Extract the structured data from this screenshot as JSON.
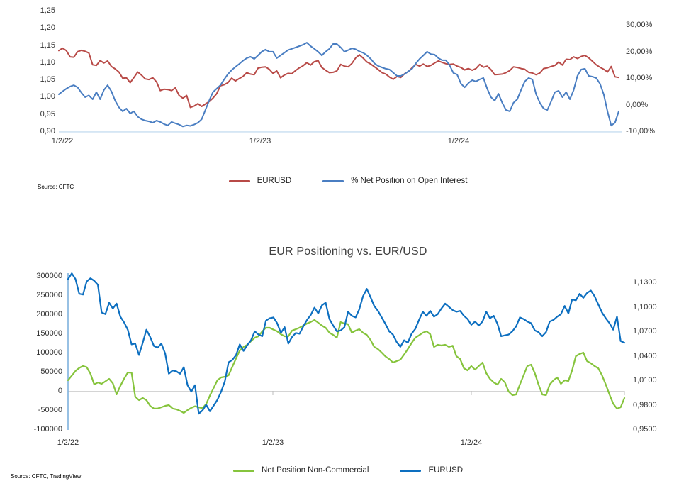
{
  "chart_data": [
    {
      "type": "line",
      "title": "",
      "source": "Source: CFTC",
      "legend_position": "bottom",
      "grid": "off",
      "x_tick_labels": [
        "1/2/22",
        "1/2/23",
        "1/2/24"
      ],
      "y_left": {
        "label": "",
        "lim": [
          0.9,
          1.25
        ],
        "tick_labels": [
          "1,25",
          "1,20",
          "1,15",
          "1,10",
          "1,05",
          "1,00",
          "0,95",
          "0,90"
        ],
        "tick_values": [
          1.25,
          1.2,
          1.15,
          1.1,
          1.05,
          1.0,
          0.95,
          0.9
        ]
      },
      "y_right": {
        "label": "",
        "lim": [
          -10,
          30
        ],
        "tick_labels": [
          "30,00%",
          "20,00%",
          "10,00%",
          "0,00%",
          "-10,00%"
        ],
        "tick_values": [
          30,
          20,
          10,
          0,
          -10
        ]
      },
      "series": [
        {
          "name": "EURUSD",
          "axis": "left",
          "color": "#b84a47",
          "values": [
            1.134,
            1.141,
            1.134,
            1.116,
            1.115,
            1.131,
            1.135,
            1.132,
            1.127,
            1.093,
            1.091,
            1.105,
            1.098,
            1.104,
            1.088,
            1.081,
            1.072,
            1.054,
            1.055,
            1.041,
            1.056,
            1.072,
            1.063,
            1.052,
            1.05,
            1.055,
            1.043,
            1.018,
            1.022,
            1.021,
            1.018,
            1.026,
            1.004,
            0.996,
            1.004,
            0.969,
            0.973,
            0.98,
            0.972,
            0.979,
            0.986,
            0.996,
            1.009,
            1.032,
            1.035,
            1.041,
            1.054,
            1.046,
            1.053,
            1.059,
            1.07,
            1.066,
            1.064,
            1.083,
            1.086,
            1.087,
            1.08,
            1.068,
            1.075,
            1.055,
            1.063,
            1.068,
            1.067,
            1.076,
            1.084,
            1.09,
            1.099,
            1.092,
            1.102,
            1.105,
            1.085,
            1.077,
            1.07,
            1.071,
            1.075,
            1.094,
            1.089,
            1.087,
            1.097,
            1.113,
            1.122,
            1.112,
            1.101,
            1.095,
            1.087,
            1.079,
            1.07,
            1.066,
            1.057,
            1.051,
            1.059,
            1.056,
            1.067,
            1.073,
            1.084,
            1.094,
            1.089,
            1.095,
            1.088,
            1.091,
            1.098,
            1.104,
            1.1,
            1.096,
            1.094,
            1.095,
            1.089,
            1.085,
            1.078,
            1.082,
            1.077,
            1.082,
            1.094,
            1.086,
            1.089,
            1.079,
            1.064,
            1.065,
            1.066,
            1.07,
            1.076,
            1.087,
            1.085,
            1.082,
            1.08,
            1.071,
            1.069,
            1.064,
            1.069,
            1.082,
            1.084,
            1.088,
            1.091,
            1.101,
            1.092,
            1.109,
            1.108,
            1.116,
            1.111,
            1.117,
            1.12,
            1.113,
            1.103,
            1.093,
            1.086,
            1.08,
            1.072,
            1.088,
            1.058,
            1.056
          ]
        },
        {
          "name": "% Net Position on Open Interest",
          "axis": "right",
          "color": "#4a7ec2",
          "values": [
            3.9,
            5.0,
            6.0,
            6.8,
            7.3,
            6.5,
            4.5,
            2.8,
            3.5,
            2.0,
            4.7,
            2.0,
            5.5,
            7.3,
            5.0,
            1.5,
            -1.0,
            -2.5,
            -1.5,
            -3.3,
            -2.5,
            -4.5,
            -5.5,
            -6.0,
            -6.3,
            -6.8,
            -6.0,
            -6.5,
            -7.3,
            -7.8,
            -6.5,
            -7.0,
            -7.5,
            -8.2,
            -7.8,
            -8.0,
            -7.5,
            -6.8,
            -5.5,
            -2.0,
            1.5,
            4.7,
            6.0,
            7.3,
            9.5,
            11.5,
            13.0,
            14.2,
            15.3,
            16.5,
            17.5,
            18.0,
            17.2,
            18.5,
            19.9,
            20.7,
            19.9,
            19.9,
            17.5,
            18.5,
            19.5,
            20.5,
            21.0,
            21.5,
            22.0,
            22.5,
            23.3,
            22.0,
            21.0,
            19.9,
            18.5,
            19.9,
            21.0,
            22.8,
            22.8,
            21.5,
            19.9,
            20.5,
            21.2,
            20.8,
            20.0,
            19.5,
            18.5,
            17.2,
            15.5,
            14.5,
            14.0,
            13.5,
            13.2,
            12.0,
            10.8,
            10.8,
            11.5,
            12.5,
            13.5,
            15.5,
            17.2,
            18.5,
            19.9,
            19.0,
            18.8,
            17.5,
            16.7,
            16.7,
            14.8,
            11.9,
            11.3,
            7.9,
            6.5,
            8.1,
            9.2,
            8.7,
            9.5,
            10.0,
            6.0,
            2.8,
            1.5,
            4.1,
            0.7,
            -2.0,
            -2.5,
            0.7,
            2.0,
            5.5,
            8.7,
            10.0,
            9.5,
            3.9,
            0.7,
            -1.5,
            -2.0,
            1.2,
            4.7,
            5.2,
            2.8,
            4.7,
            2.0,
            5.5,
            10.8,
            13.2,
            13.5,
            10.8,
            10.5,
            10.0,
            7.9,
            3.9,
            -2.5,
            -7.9,
            -6.8,
            -2.5
          ]
        }
      ]
    },
    {
      "type": "line",
      "title": "EUR Positioning vs. EUR/USD",
      "source": "Source: CFTC, TradingView",
      "legend_position": "bottom",
      "grid": "zero-line-only",
      "x_tick_labels": [
        "1/2/22",
        "1/2/23",
        "1/2/24"
      ],
      "y_left": {
        "label": "",
        "lim": [
          -100000,
          300000
        ],
        "tick_labels": [
          "300000",
          "250000",
          "200000",
          "150000",
          "100000",
          "50000",
          "0",
          "-50000",
          "-100000"
        ],
        "tick_values": [
          300000,
          250000,
          200000,
          150000,
          100000,
          50000,
          0,
          -50000,
          -100000
        ]
      },
      "y_right": {
        "label": "",
        "lim": [
          0.95,
          1.13
        ],
        "tick_labels": [
          "1,1300",
          "1,1000",
          "1,0700",
          "1,0400",
          "1,0100",
          "0,9800",
          "0,9500"
        ],
        "tick_values": [
          1.13,
          1.1,
          1.07,
          1.04,
          1.01,
          0.98,
          0.95
        ]
      },
      "series": [
        {
          "name": "Net Position Non-Commercial",
          "axis": "left",
          "color": "#86c43d",
          "values": [
            28000,
            40000,
            52000,
            60000,
            65000,
            62000,
            45000,
            17000,
            22000,
            18500,
            25000,
            31500,
            20000,
            -9000,
            13000,
            31500,
            48000,
            48000,
            -15000,
            -24000,
            -18500,
            -24000,
            -39000,
            -46000,
            -46000,
            -42500,
            -39000,
            -37000,
            -46000,
            -48000,
            -52000,
            -57500,
            -50000,
            -44000,
            -40000,
            -43000,
            -45000,
            -34000,
            -12000,
            8000,
            27800,
            35200,
            37000,
            40700,
            63000,
            85000,
            105600,
            114800,
            120400,
            130000,
            138900,
            142600,
            155600,
            164800,
            164800,
            160000,
            155600,
            148000,
            142600,
            142600,
            157400,
            161100,
            165000,
            170400,
            175900,
            180000,
            185200,
            178000,
            170400,
            164800,
            151900,
            146300,
            138900,
            179600,
            175900,
            174100,
            151900,
            157400,
            161100,
            151900,
            146300,
            133300,
            114800,
            109300,
            100000,
            90000,
            83300,
            74100,
            77800,
            81500,
            95000,
            109300,
            125000,
            138900,
            145000,
            151900,
            155600,
            148000,
            114800,
            120400,
            118500,
            120400,
            115000,
            118000,
            90700,
            83300,
            59300,
            53700,
            64800,
            55600,
            64800,
            74100,
            46300,
            31500,
            22200,
            16700,
            31500,
            22200,
            -1850,
            -11100,
            -9260,
            16700,
            40700,
            64800,
            68500,
            46300,
            16700,
            -9260,
            -11100,
            16700,
            27800,
            35200,
            18500,
            27800,
            25900,
            53700,
            90700,
            96300,
            100000,
            77800,
            72200,
            64800,
            59300,
            40700,
            16700,
            -9260,
            -33300,
            -46300,
            -42600,
            -18500
          ]
        },
        {
          "name": "EURUSD",
          "axis": "right",
          "color": "#0d6fc0",
          "values": [
            1.134,
            1.141,
            1.134,
            1.116,
            1.115,
            1.131,
            1.135,
            1.132,
            1.127,
            1.093,
            1.091,
            1.105,
            1.098,
            1.104,
            1.088,
            1.081,
            1.072,
            1.054,
            1.055,
            1.041,
            1.056,
            1.072,
            1.063,
            1.052,
            1.05,
            1.055,
            1.043,
            1.018,
            1.022,
            1.021,
            1.018,
            1.026,
            1.004,
            0.996,
            1.004,
            0.969,
            0.973,
            0.98,
            0.972,
            0.979,
            0.986,
            0.996,
            1.009,
            1.032,
            1.035,
            1.041,
            1.054,
            1.046,
            1.053,
            1.059,
            1.07,
            1.066,
            1.064,
            1.083,
            1.086,
            1.087,
            1.08,
            1.068,
            1.075,
            1.055,
            1.063,
            1.068,
            1.067,
            1.076,
            1.084,
            1.09,
            1.099,
            1.092,
            1.102,
            1.105,
            1.085,
            1.077,
            1.07,
            1.071,
            1.075,
            1.094,
            1.089,
            1.087,
            1.097,
            1.113,
            1.122,
            1.112,
            1.101,
            1.095,
            1.087,
            1.079,
            1.07,
            1.066,
            1.057,
            1.051,
            1.059,
            1.056,
            1.067,
            1.073,
            1.084,
            1.094,
            1.089,
            1.095,
            1.088,
            1.091,
            1.098,
            1.104,
            1.1,
            1.096,
            1.094,
            1.095,
            1.089,
            1.085,
            1.078,
            1.082,
            1.077,
            1.082,
            1.094,
            1.086,
            1.089,
            1.079,
            1.064,
            1.065,
            1.066,
            1.07,
            1.076,
            1.087,
            1.085,
            1.082,
            1.08,
            1.071,
            1.069,
            1.064,
            1.069,
            1.082,
            1.084,
            1.088,
            1.091,
            1.101,
            1.092,
            1.109,
            1.108,
            1.116,
            1.111,
            1.117,
            1.12,
            1.113,
            1.103,
            1.093,
            1.086,
            1.08,
            1.072,
            1.088,
            1.058,
            1.056
          ]
        }
      ]
    }
  ]
}
